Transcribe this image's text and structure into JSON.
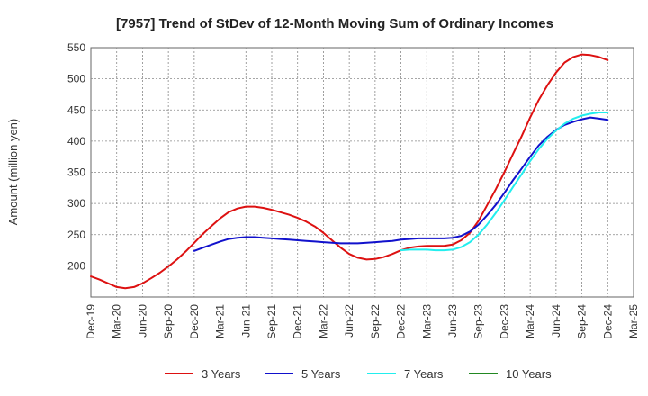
{
  "chart_data": {
    "type": "line",
    "title": "[7957]  Trend of StDev of 12-Month Moving Sum of Ordinary Incomes",
    "xlabel": "",
    "ylabel": "Amount (million yen)",
    "ylim": [
      150,
      550
    ],
    "yticks": [
      200,
      250,
      300,
      350,
      400,
      450,
      500,
      550
    ],
    "x_tick_labels": [
      "Dec-19",
      "Mar-20",
      "Jun-20",
      "Sep-20",
      "Dec-20",
      "Mar-21",
      "Jun-21",
      "Sep-21",
      "Dec-21",
      "Mar-22",
      "Jun-22",
      "Sep-22",
      "Dec-22",
      "Mar-23",
      "Jun-23",
      "Sep-23",
      "Dec-23",
      "Mar-24",
      "Jun-24",
      "Sep-24",
      "Dec-24",
      "Mar-25"
    ],
    "grid": true,
    "legend_position": "bottom",
    "series": [
      {
        "name": "3 Years",
        "color": "#dd1111",
        "x": [
          0,
          0.33,
          0.67,
          1,
          1.33,
          1.67,
          2,
          2.33,
          2.67,
          3,
          3.33,
          3.67,
          4,
          4.33,
          4.67,
          5,
          5.33,
          5.67,
          6,
          6.33,
          6.67,
          7,
          7.33,
          7.67,
          8,
          8.33,
          8.67,
          9,
          9.33,
          9.67,
          10,
          10.33,
          10.67,
          11,
          11.33,
          11.67,
          12,
          12.33,
          12.67,
          13,
          13.33,
          13.67,
          14,
          14.33,
          14.67,
          15,
          15.33,
          15.67,
          16,
          16.33,
          16.67,
          17,
          17.33,
          17.67,
          18,
          18.33,
          18.67,
          19,
          19.33,
          19.67,
          20
        ],
        "values": [
          183,
          178,
          172,
          166,
          164,
          166,
          172,
          180,
          189,
          199,
          210,
          223,
          237,
          251,
          264,
          276,
          286,
          292,
          295,
          295,
          293,
          290,
          286,
          282,
          277,
          271,
          263,
          253,
          241,
          229,
          219,
          213,
          210,
          211,
          214,
          219,
          225,
          229,
          231,
          232,
          232,
          232,
          234,
          241,
          253,
          272,
          297,
          323,
          350,
          379,
          408,
          438,
          466,
          490,
          510,
          526,
          535,
          539,
          538,
          535,
          530
        ]
      },
      {
        "name": "5 Years",
        "color": "#1111cc",
        "x": [
          4,
          4.33,
          4.67,
          5,
          5.33,
          5.67,
          6,
          6.33,
          6.67,
          7,
          7.33,
          7.67,
          8,
          8.33,
          8.67,
          9,
          9.33,
          9.67,
          10,
          10.33,
          10.67,
          11,
          11.33,
          11.67,
          12,
          12.33,
          12.67,
          13,
          13.33,
          13.67,
          14,
          14.33,
          14.67,
          15,
          15.33,
          15.67,
          16,
          16.33,
          16.67,
          17,
          17.33,
          17.67,
          18,
          18.33,
          18.67,
          19,
          19.33,
          19.67,
          20
        ],
        "values": [
          224,
          229,
          234,
          239,
          243,
          245,
          246,
          246,
          245,
          244,
          243,
          242,
          241,
          240,
          239,
          238,
          237,
          236,
          236,
          236,
          237,
          238,
          239,
          240,
          242,
          243,
          244,
          244,
          244,
          244,
          245,
          248,
          255,
          266,
          281,
          298,
          317,
          337,
          356,
          375,
          393,
          407,
          418,
          426,
          431,
          435,
          438,
          436,
          434
        ]
      },
      {
        "name": "7 Years",
        "color": "#22eeee",
        "x": [
          12,
          12.33,
          12.67,
          13,
          13.33,
          13.67,
          14,
          14.33,
          14.67,
          15,
          15.33,
          15.67,
          16,
          16.33,
          16.67,
          17,
          17.33,
          17.67,
          18,
          18.33,
          18.67,
          19,
          19.33,
          19.67,
          20
        ],
        "values": [
          225,
          226,
          226,
          226,
          225,
          225,
          226,
          230,
          238,
          250,
          266,
          285,
          305,
          326,
          347,
          368,
          387,
          404,
          417,
          428,
          436,
          441,
          444,
          446,
          446
        ]
      },
      {
        "name": "10 Years",
        "color": "#228822",
        "x": [],
        "values": []
      }
    ]
  }
}
